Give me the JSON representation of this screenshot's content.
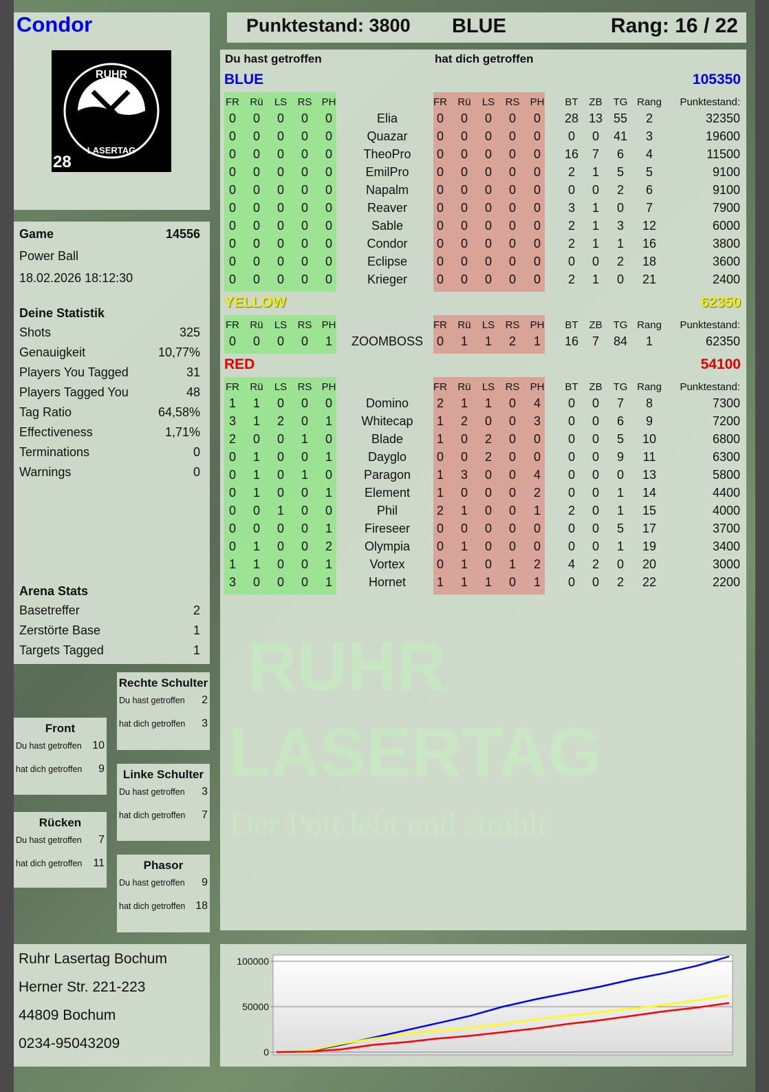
{
  "player": {
    "name": "Condor",
    "logo_text": "RUHR LASERTAG 28"
  },
  "header": {
    "score_label": "Punktestand: 3800",
    "team": "BLUE",
    "rank_label": "Rang: 16 / 22"
  },
  "game": {
    "label": "Game",
    "id": "14556",
    "mode": "Power Ball",
    "datetime": "18.02.2026 18:12:30"
  },
  "stats": {
    "title": "Deine Statistik",
    "items": [
      {
        "label": "Shots",
        "value": "325"
      },
      {
        "label": "Genauigkeit",
        "value": "10,77%"
      },
      {
        "label": "Players You Tagged",
        "value": "31"
      },
      {
        "label": "Players Tagged You",
        "value": "48"
      },
      {
        "label": "Tag Ratio",
        "value": "64,58%"
      },
      {
        "label": "Effectiveness",
        "value": "1,71%"
      },
      {
        "label": "Terminations",
        "value": "0"
      },
      {
        "label": "Warnings",
        "value": "0"
      }
    ]
  },
  "arena": {
    "title": "Arena Stats",
    "items": [
      {
        "label": "Basetreffer",
        "value": "2"
      },
      {
        "label": "Zerstörte Base",
        "value": "1"
      },
      {
        "label": "Targets Tagged",
        "value": "1"
      }
    ]
  },
  "hitzones": [
    {
      "title": "Front",
      "you_hit_label": "Du hast getroffen",
      "you_hit": "10",
      "hit_you_label": "hat dich getroffen",
      "hit_you": "9"
    },
    {
      "title": "Rücken",
      "you_hit_label": "Du hast getroffen",
      "you_hit": "7",
      "hit_you_label": "hat dich getroffen",
      "hit_you": "11"
    },
    {
      "title": "Rechte Schulter",
      "you_hit_label": "Du hast getroffen",
      "you_hit": "2",
      "hit_you_label": "hat dich getroffen",
      "hit_you": "3"
    },
    {
      "title": "Linke Schulter",
      "you_hit_label": "Du hast getroffen",
      "you_hit": "3",
      "hit_you_label": "hat dich getroffen",
      "hit_you": "7"
    },
    {
      "title": "Phasor",
      "you_hit_label": "Du hast getroffen",
      "you_hit": "9",
      "hit_you_label": "hat dich getroffen",
      "hit_you": "18"
    }
  ],
  "address": {
    "lines": [
      "Ruhr Lasertag Bochum",
      "Herner Str. 221-223",
      "44809 Bochum",
      "0234-95043209"
    ]
  },
  "table": {
    "you_hit": "Du hast getroffen",
    "hit_you": "hat dich getroffen",
    "cols_hit": [
      "FR",
      "Rü",
      "LS",
      "RS",
      "PH"
    ],
    "cols_stats": [
      "BT",
      "ZB",
      "TG",
      "Rang",
      "Punktestand:"
    ],
    "teams": [
      {
        "name": "BLUE",
        "score": "105350",
        "color": "#0000e0",
        "players": [
          [
            "Elia",
            [
              0,
              0,
              0,
              0,
              0
            ],
            [
              0,
              0,
              0,
              0,
              0
            ],
            [
              28,
              13,
              55,
              2
            ],
            32350
          ],
          [
            "Quazar",
            [
              0,
              0,
              0,
              0,
              0
            ],
            [
              0,
              0,
              0,
              0,
              0
            ],
            [
              0,
              0,
              41,
              3
            ],
            19600
          ],
          [
            "TheoPro",
            [
              0,
              0,
              0,
              0,
              0
            ],
            [
              0,
              0,
              0,
              0,
              0
            ],
            [
              16,
              7,
              6,
              4
            ],
            11500
          ],
          [
            "EmilPro",
            [
              0,
              0,
              0,
              0,
              0
            ],
            [
              0,
              0,
              0,
              0,
              0
            ],
            [
              2,
              1,
              5,
              5
            ],
            9100
          ],
          [
            "Napalm",
            [
              0,
              0,
              0,
              0,
              0
            ],
            [
              0,
              0,
              0,
              0,
              0
            ],
            [
              0,
              0,
              2,
              6
            ],
            9100
          ],
          [
            "Reaver",
            [
              0,
              0,
              0,
              0,
              0
            ],
            [
              0,
              0,
              0,
              0,
              0
            ],
            [
              3,
              1,
              0,
              7
            ],
            7900
          ],
          [
            "Sable",
            [
              0,
              0,
              0,
              0,
              0
            ],
            [
              0,
              0,
              0,
              0,
              0
            ],
            [
              2,
              1,
              3,
              12
            ],
            6000
          ],
          [
            "Condor",
            [
              0,
              0,
              0,
              0,
              0
            ],
            [
              0,
              0,
              0,
              0,
              0
            ],
            [
              2,
              1,
              1,
              16
            ],
            3800
          ],
          [
            "Eclipse",
            [
              0,
              0,
              0,
              0,
              0
            ],
            [
              0,
              0,
              0,
              0,
              0
            ],
            [
              0,
              0,
              2,
              18
            ],
            3600
          ],
          [
            "Krieger",
            [
              0,
              0,
              0,
              0,
              0
            ],
            [
              0,
              0,
              0,
              0,
              0
            ],
            [
              2,
              1,
              0,
              21
            ],
            2400
          ]
        ]
      },
      {
        "name": "YELLOW",
        "score": "62350",
        "color": "#f0f000",
        "players": [
          [
            "ZOOMBOSS",
            [
              0,
              0,
              0,
              0,
              1
            ],
            [
              0,
              1,
              1,
              2,
              1
            ],
            [
              16,
              7,
              84,
              1
            ],
            62350
          ]
        ]
      },
      {
        "name": "RED",
        "score": "54100",
        "color": "#e00000",
        "players": [
          [
            "Domino",
            [
              1,
              1,
              0,
              0,
              0
            ],
            [
              2,
              1,
              1,
              0,
              4
            ],
            [
              0,
              0,
              7,
              8
            ],
            7300
          ],
          [
            "Whitecap",
            [
              3,
              1,
              2,
              0,
              1
            ],
            [
              1,
              2,
              0,
              0,
              3
            ],
            [
              0,
              0,
              6,
              9
            ],
            7200
          ],
          [
            "Blade",
            [
              2,
              0,
              0,
              1,
              0
            ],
            [
              1,
              0,
              2,
              0,
              0
            ],
            [
              0,
              0,
              5,
              10
            ],
            6800
          ],
          [
            "Dayglo",
            [
              0,
              1,
              0,
              0,
              1
            ],
            [
              0,
              0,
              2,
              0,
              0
            ],
            [
              0,
              0,
              9,
              11
            ],
            6300
          ],
          [
            "Paragon",
            [
              0,
              1,
              0,
              1,
              0
            ],
            [
              1,
              3,
              0,
              0,
              4
            ],
            [
              0,
              0,
              0,
              13
            ],
            5800
          ],
          [
            "Element",
            [
              0,
              1,
              0,
              0,
              1
            ],
            [
              1,
              0,
              0,
              0,
              2
            ],
            [
              0,
              0,
              1,
              14
            ],
            4400
          ],
          [
            "Phil",
            [
              0,
              0,
              1,
              0,
              0
            ],
            [
              2,
              1,
              0,
              0,
              1
            ],
            [
              2,
              0,
              1,
              15
            ],
            4000
          ],
          [
            "Fireseer",
            [
              0,
              0,
              0,
              0,
              1
            ],
            [
              0,
              0,
              0,
              0,
              0
            ],
            [
              0,
              0,
              5,
              17
            ],
            3700
          ],
          [
            "Olympia",
            [
              0,
              1,
              0,
              0,
              2
            ],
            [
              0,
              1,
              0,
              0,
              0
            ],
            [
              0,
              0,
              1,
              19
            ],
            3400
          ],
          [
            "Vortex",
            [
              1,
              1,
              0,
              0,
              1
            ],
            [
              0,
              1,
              0,
              1,
              2
            ],
            [
              4,
              2,
              0,
              20
            ],
            3000
          ],
          [
            "Hornet",
            [
              3,
              0,
              0,
              0,
              1
            ],
            [
              1,
              1,
              1,
              0,
              1
            ],
            [
              0,
              0,
              2,
              22
            ],
            2200
          ]
        ]
      }
    ]
  },
  "watermark": {
    "line1": "RUHR",
    "line2": "LASERTAG",
    "slogan": "Der Pott lebt und strahlt"
  },
  "chart_data": {
    "type": "line",
    "ylim": [
      0,
      110000
    ],
    "yticks": [
      "100000",
      "50000",
      "0"
    ],
    "ytick_values": [
      100000,
      50000,
      0
    ],
    "grid": true,
    "series": [
      {
        "color": "#0000ff",
        "values": [
          0,
          1000,
          8000,
          16000,
          24000,
          32000,
          40000,
          50000,
          58000,
          65000,
          72000,
          80000,
          87000,
          95000,
          105350
        ]
      },
      {
        "color": "#ffff00",
        "values": [
          0,
          1500,
          9000,
          15000,
          20000,
          24000,
          27000,
          31000,
          36000,
          40000,
          44000,
          48000,
          52000,
          57000,
          62350
        ]
      },
      {
        "color": "#ff0000",
        "values": [
          0,
          500,
          3000,
          8000,
          11000,
          15000,
          18000,
          22000,
          26000,
          31000,
          35000,
          40000,
          45000,
          49000,
          54100
        ]
      }
    ]
  }
}
